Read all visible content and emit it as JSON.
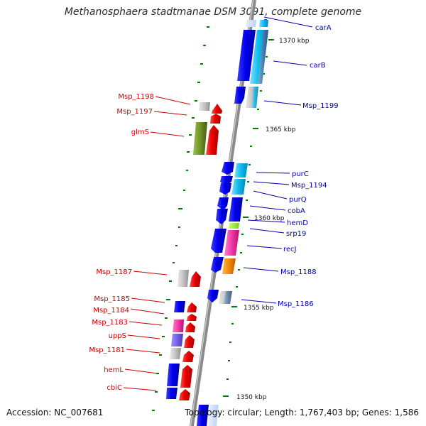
{
  "header": {
    "title": "Methanosphaera stadtmanae DSM 3091, complete genome"
  },
  "footer": {
    "accession": "Accession: NC_007681",
    "topology": "Topology: circular; Length: 1,767,403 bp; Genes: 1,586"
  },
  "colors": {
    "left_label": "#cc0000",
    "right_label": "#0000aa",
    "backbone": "#8a8a8a",
    "tick": "#007a00"
  },
  "scale_labels": [
    "1370 kbp",
    "1365 kbp",
    "1360 kbp",
    "1355 kbp",
    "1350 kbp"
  ],
  "left_labels": [
    "Msp_1198",
    "Msp_1197",
    "glmS",
    "Msp_1187",
    "Msp_1185",
    "Msp_1184",
    "Msp_1183",
    "uppS",
    "Msp_1181",
    "hemL",
    "cbiC"
  ],
  "right_labels": [
    "carA",
    "carB",
    "Msp_1199",
    "purC",
    "Msp_1194",
    "purQ",
    "cobA",
    "hemD",
    "srp19",
    "recJ",
    "Msp_1188",
    "Msp_1186"
  ]
}
